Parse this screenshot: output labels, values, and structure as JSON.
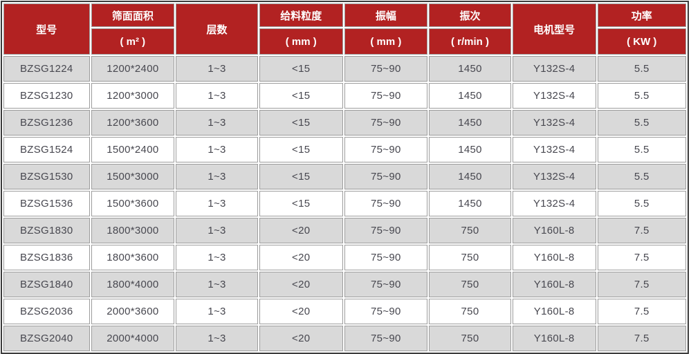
{
  "table": {
    "columns": [
      {
        "id": "model",
        "label": "型号",
        "unit": null
      },
      {
        "id": "screen-area",
        "label": "筛面面积",
        "unit": "( m² )"
      },
      {
        "id": "layers",
        "label": "层数",
        "unit": null
      },
      {
        "id": "feed-size",
        "label": "给料粒度",
        "unit": "( mm )"
      },
      {
        "id": "amplitude",
        "label": "振幅",
        "unit": "( mm )"
      },
      {
        "id": "frequency",
        "label": "振次",
        "unit": "( r/min )"
      },
      {
        "id": "motor-model",
        "label": "电机型号",
        "unit": null
      },
      {
        "id": "power",
        "label": "功率",
        "unit": "( KW )"
      }
    ],
    "rows": [
      [
        "BZSG1224",
        "1200*2400",
        "1~3",
        "<15",
        "75~90",
        "1450",
        "Y132S-4",
        "5.5"
      ],
      [
        "BZSG1230",
        "1200*3000",
        "1~3",
        "<15",
        "75~90",
        "1450",
        "Y132S-4",
        "5.5"
      ],
      [
        "BZSG1236",
        "1200*3600",
        "1~3",
        "<15",
        "75~90",
        "1450",
        "Y132S-4",
        "5.5"
      ],
      [
        "BZSG1524",
        "1500*2400",
        "1~3",
        "<15",
        "75~90",
        "1450",
        "Y132S-4",
        "5.5"
      ],
      [
        "BZSG1530",
        "1500*3000",
        "1~3",
        "<15",
        "75~90",
        "1450",
        "Y132S-4",
        "5.5"
      ],
      [
        "BZSG1536",
        "1500*3600",
        "1~3",
        "<15",
        "75~90",
        "1450",
        "Y132S-4",
        "5.5"
      ],
      [
        "BZSG1830",
        "1800*3000",
        "1~3",
        "<20",
        "75~90",
        "750",
        "Y160L-8",
        "7.5"
      ],
      [
        "BZSG1836",
        "1800*3600",
        "1~3",
        "<20",
        "75~90",
        "750",
        "Y160L-8",
        "7.5"
      ],
      [
        "BZSG1840",
        "1800*4000",
        "1~3",
        "<20",
        "75~90",
        "750",
        "Y160L-8",
        "7.5"
      ],
      [
        "BZSG2036",
        "2000*3600",
        "1~3",
        "<20",
        "75~90",
        "750",
        "Y160L-8",
        "7.5"
      ],
      [
        "BZSG2040",
        "2000*4000",
        "1~3",
        "<20",
        "75~90",
        "750",
        "Y160L-8",
        "7.5"
      ]
    ]
  },
  "colors": {
    "header_bg": "#b22222",
    "header_text": "#ffffff",
    "row_alt_bg": "#d9d9d9",
    "row_bg": "#ffffff",
    "cell_border": "#9c9c9c",
    "outer_border": "#3c3c3c",
    "body_text": "#47474f"
  }
}
